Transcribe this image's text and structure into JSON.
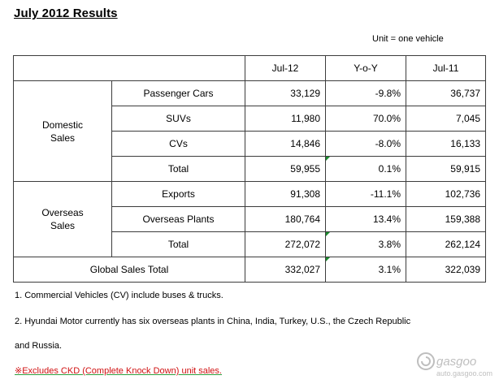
{
  "title": "July 2012 Results",
  "unit_note": "Unit = one vehicle",
  "table": {
    "headers": [
      "",
      "Jul-12",
      "Y-o-Y",
      "Jul-11"
    ],
    "domestic": {
      "label_line1": "Domestic",
      "label_line2": "Sales",
      "rows": [
        {
          "label": "Passenger Cars",
          "jul12": "33,129",
          "yoy": "-9.8%",
          "jul11": "36,737"
        },
        {
          "label": "SUVs",
          "jul12": "11,980",
          "yoy": "70.0%",
          "jul11": "7,045"
        },
        {
          "label": "CVs",
          "jul12": "14,846",
          "yoy": "-8.0%",
          "jul11": "16,133"
        },
        {
          "label": "Total",
          "jul12": "59,955",
          "yoy": "0.1%",
          "jul11": "59,915"
        }
      ]
    },
    "overseas": {
      "label_line1": "Overseas",
      "label_line2": "Sales",
      "rows": [
        {
          "label": "Exports",
          "jul12": "91,308",
          "yoy": "-11.1%",
          "jul11": "102,736"
        },
        {
          "label": "Overseas Plants",
          "jul12": "180,764",
          "yoy": "13.4%",
          "jul11": "159,388"
        },
        {
          "label": "Total",
          "jul12": "272,072",
          "yoy": "3.8%",
          "jul11": "262,124"
        }
      ]
    },
    "global": {
      "label": "Global Sales Total",
      "jul12": "332,027",
      "yoy": "3.1%",
      "jul11": "322,039"
    }
  },
  "notes": [
    "1. Commercial Vehicles (CV) include buses & trucks.",
    "2. Hyundai Motor currently has six overseas plants in China, India, Turkey, U.S., the Czech Republic",
    "and Russia.",
    "※Excludes CKD (Complete Knock Down) unit sales."
  ],
  "watermark": {
    "brand": "gasgoo",
    "url": "auto.gasgoo.com"
  }
}
